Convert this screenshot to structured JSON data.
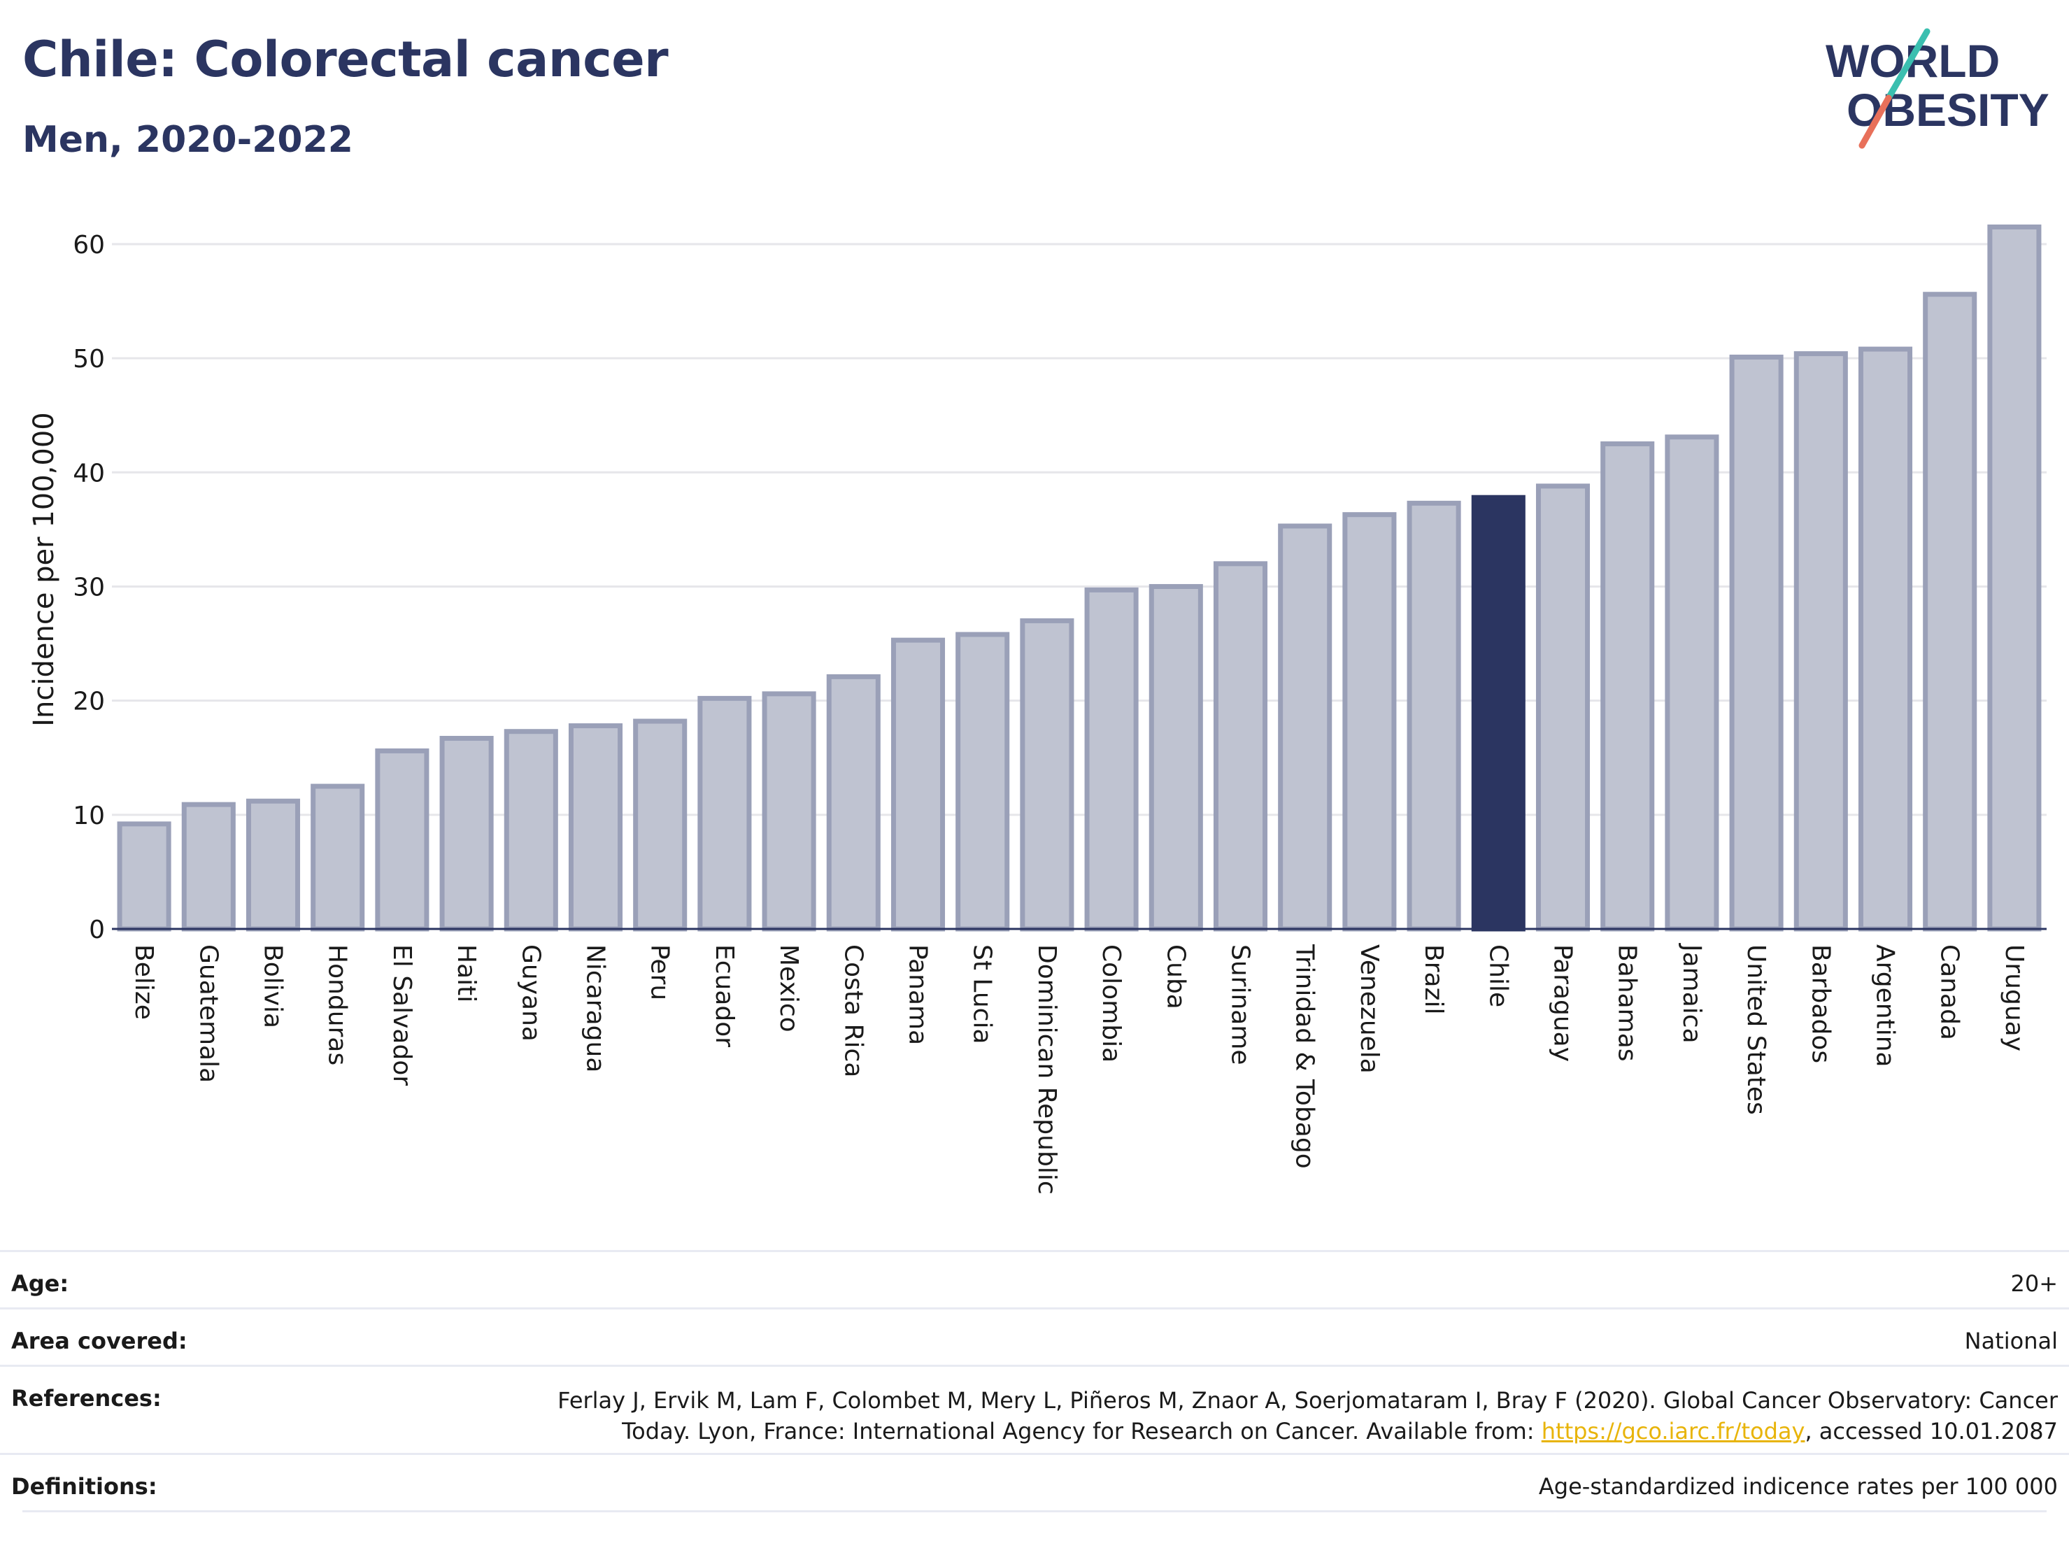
{
  "header": {
    "title": "Chile: Colorectal cancer",
    "subtitle": "Men, 2020-2022"
  },
  "logo": {
    "line1": "WORLD",
    "line2": "OBESITY",
    "colors": {
      "text": "#2b3561",
      "slash_teal": "#3bbfb0",
      "slash_coral": "#e8705a"
    }
  },
  "colors": {
    "bar_default": "#bfc3d1",
    "bar_default_stroke": "#9aa0b8",
    "bar_highlight": "#2b3561",
    "grid": "#e6e6ea",
    "axis": "#2b3561"
  },
  "chart_data": {
    "type": "bar",
    "ylabel": "Incidence per 100,000",
    "ylim": [
      0,
      63
    ],
    "yticks": [
      0,
      10,
      20,
      30,
      40,
      50,
      60
    ],
    "grid": true,
    "highlight": "Chile",
    "categories": [
      "Belize",
      "Guatemala",
      "Bolivia",
      "Honduras",
      "El Salvador",
      "Haiti",
      "Guyana",
      "Nicaragua",
      "Peru",
      "Ecuador",
      "Mexico",
      "Costa Rica",
      "Panama",
      "St Lucia",
      "Dominican Republic",
      "Colombia",
      "Cuba",
      "Suriname",
      "Trinidad & Tobago",
      "Venezuela",
      "Brazil",
      "Chile",
      "Paraguay",
      "Bahamas",
      "Jamaica",
      "United States",
      "Barbados",
      "Argentina",
      "Canada",
      "Uruguay"
    ],
    "values": [
      9.2,
      10.9,
      11.2,
      12.5,
      15.6,
      16.7,
      17.3,
      17.8,
      18.2,
      20.2,
      20.6,
      22.1,
      25.3,
      25.8,
      27.0,
      29.7,
      30.0,
      32.0,
      35.3,
      36.3,
      37.3,
      37.8,
      38.8,
      42.5,
      43.1,
      50.1,
      50.4,
      50.8,
      55.6,
      61.5
    ]
  },
  "meta": {
    "age_label": "Age:",
    "age_value": "20+",
    "area_label": "Area covered:",
    "area_value": "National",
    "references_label": "References:",
    "references_line1": "Ferlay J, Ervik M, Lam F, Colombet M, Mery L, Piñeros M, Znaor A, Soerjomataram I, Bray F (2020). Global Cancer Observatory: Cancer",
    "references_line2_pre": "Today. Lyon, France: International Agency for Research on Cancer. Available from: ",
    "references_link": "https://gco.iarc.fr/today",
    "references_line2_post": ", accessed 10.01.2087",
    "definitions_label": "Definitions:",
    "definitions_value": "Age-standardized indicence rates per 100 000"
  }
}
